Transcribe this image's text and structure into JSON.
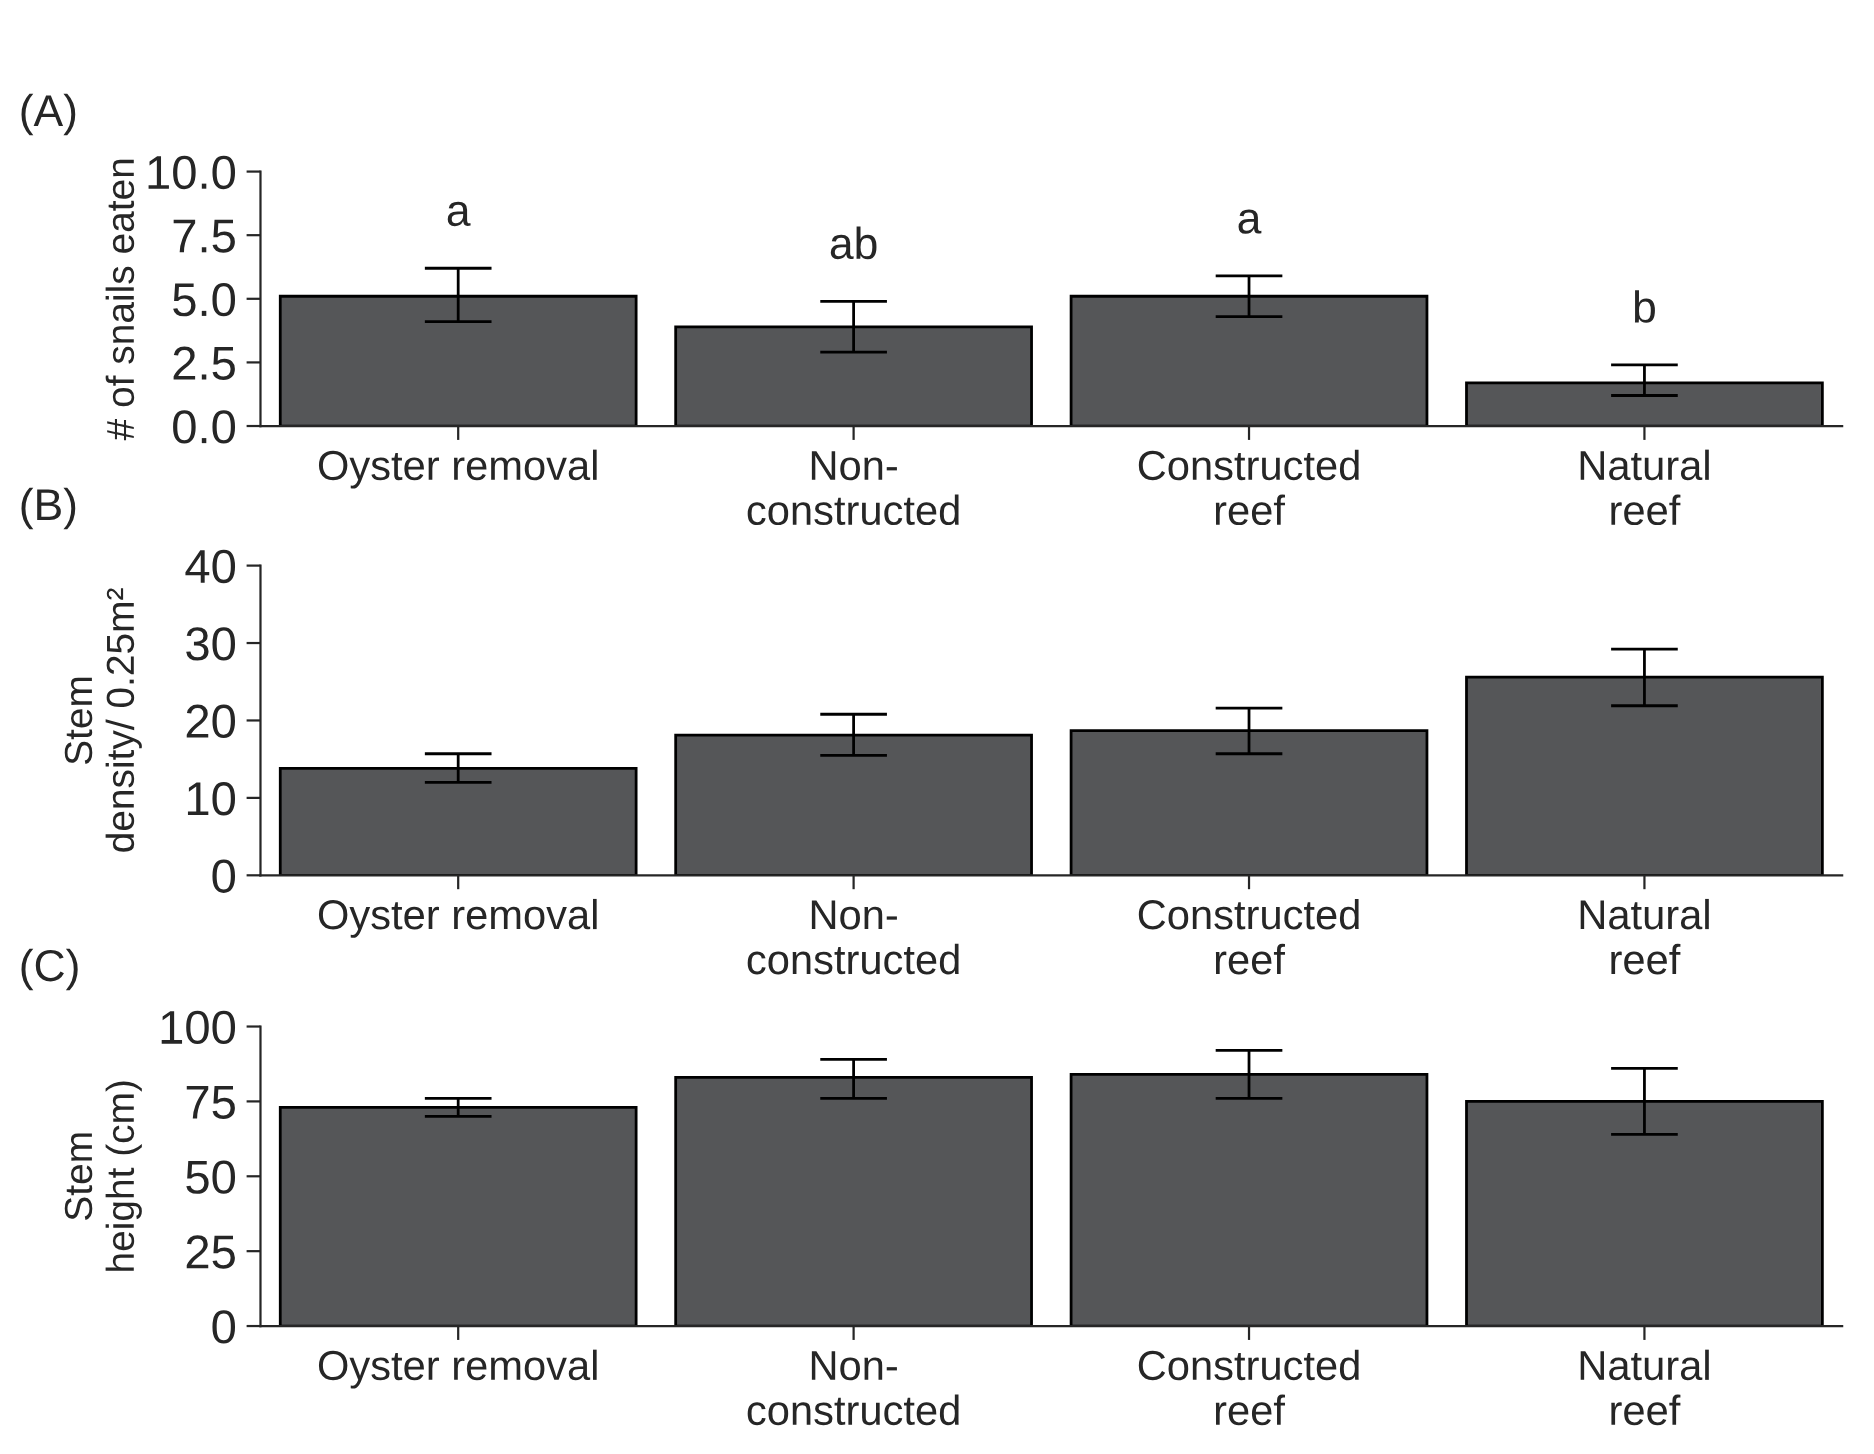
{
  "chart_data": [
    {
      "type": "bar",
      "title": "(A)",
      "ylabel": "# of snails eaten",
      "categories": [
        "Oyster removal",
        "Non-\nconstructed",
        "Constructed\nreef",
        "Natural\nreef"
      ],
      "color": "#555658",
      "values": [
        5.1,
        3.9,
        5.1,
        1.7
      ],
      "errors": [
        [
          4.1,
          6.2
        ],
        [
          2.9,
          4.9
        ],
        [
          4.3,
          5.9
        ],
        [
          1.2,
          2.4
        ]
      ],
      "ylim": [
        0,
        10
      ],
      "yticks": [
        {
          "value": 0,
          "label": "0.0"
        },
        {
          "value": 2.5,
          "label": "2.5"
        },
        {
          "value": 5,
          "label": "5.0"
        },
        {
          "value": 7.5,
          "label": "7.5"
        },
        {
          "value": 10,
          "label": "10.0"
        }
      ],
      "annotations": [
        "a",
        "ab",
        "a",
        "b"
      ],
      "grid": false,
      "legend": false
    },
    {
      "type": "bar",
      "title": "(B)",
      "ylabel": "Stem\ndensity/ 0.25m²",
      "categories": [
        "Oyster removal",
        "Non-\nconstructed",
        "Constructed\nreef",
        "Natural\nreef"
      ],
      "color": "#555658",
      "values": [
        13.8,
        18.1,
        18.7,
        25.6
      ],
      "errors": [
        [
          12.0,
          15.7
        ],
        [
          15.5,
          20.8
        ],
        [
          15.7,
          21.6
        ],
        [
          21.9,
          29.2
        ]
      ],
      "ylim": [
        0,
        40
      ],
      "yticks": [
        0,
        10,
        20,
        30,
        40
      ],
      "grid": false,
      "legend": false
    },
    {
      "type": "bar",
      "title": "(C)",
      "ylabel": "Stem\nheight (cm)",
      "categories": [
        "Oyster removal",
        "Non-\nconstructed",
        "Constructed\nreef",
        "Natural\nreef"
      ],
      "color": "#555658",
      "values": [
        73,
        83,
        84,
        75
      ],
      "errors": [
        [
          70,
          76
        ],
        [
          76,
          89
        ],
        [
          76,
          92
        ],
        [
          64,
          86
        ]
      ],
      "ylim": [
        0,
        100
      ],
      "yticks": [
        0,
        25,
        50,
        75,
        100
      ],
      "grid": false,
      "legend": false
    }
  ]
}
